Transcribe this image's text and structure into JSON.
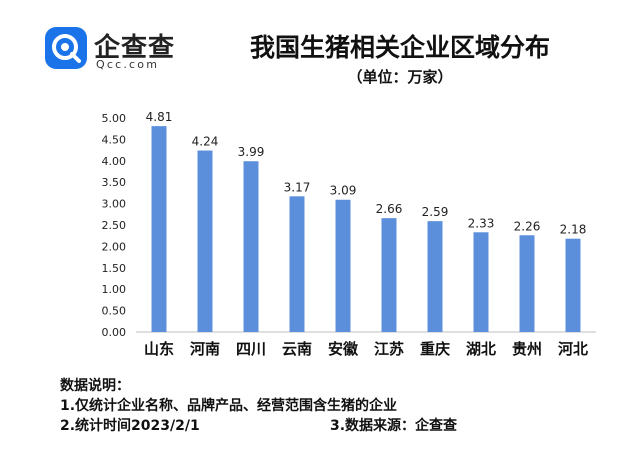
{
  "brand": {
    "name_cn": "企查查",
    "name_en": "Qcc.com",
    "color": "#1a73e8"
  },
  "chart_data": {
    "type": "bar",
    "title": "我国生猪相关企业区域分布",
    "subtitle": "（单位：万家）",
    "categories": [
      "山东",
      "河南",
      "四川",
      "云南",
      "安徽",
      "江苏",
      "重庆",
      "湖北",
      "贵州",
      "河北"
    ],
    "values": [
      4.81,
      4.24,
      3.99,
      3.17,
      3.09,
      2.66,
      2.59,
      2.33,
      2.26,
      2.18
    ],
    "value_labels": [
      "4.81",
      "4.24",
      "3.99",
      "3.17",
      "3.09",
      "2.66",
      "2.59",
      "2.33",
      "2.26",
      "2.18"
    ],
    "ylim": [
      0,
      5
    ],
    "yticks": [
      "0.00",
      "0.50",
      "1.00",
      "1.50",
      "2.00",
      "2.50",
      "3.00",
      "3.50",
      "4.00",
      "4.50",
      "5.00"
    ],
    "grid": false,
    "bar_color": "#5b8fdc"
  },
  "notes": {
    "heading": "数据说明：",
    "line1": "1.仅统计企业名称、品牌产品、经营范围含生猪的企业",
    "line2_left": "2.统计时间2023/2/1",
    "line2_right": "3.数据来源：企查查"
  }
}
